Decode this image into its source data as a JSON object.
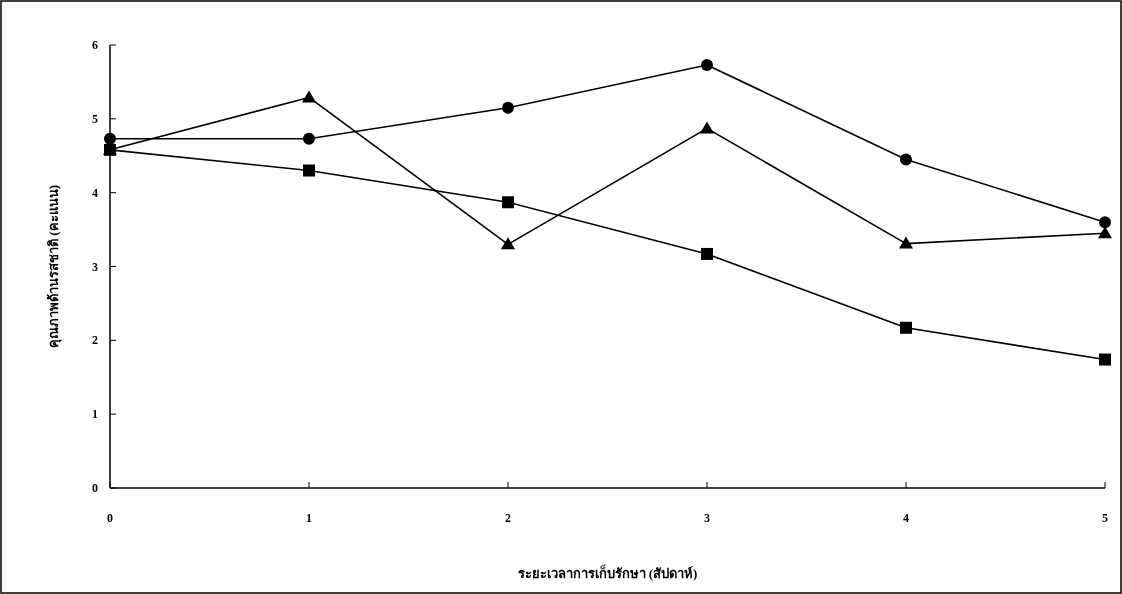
{
  "chart_data": {
    "type": "line",
    "xlabel": "ระยะเวลาการเก็บรักษา (สัปดาห์)",
    "ylabel": "คุณภาพด้านรสชาติ (คะแนน)",
    "x": [
      0,
      1,
      2,
      3,
      4,
      5
    ],
    "xlim": [
      0,
      5
    ],
    "xticks": [
      0,
      1,
      2,
      3,
      4,
      5
    ],
    "ylim": [
      0,
      6
    ],
    "yticks": [
      0,
      1,
      2,
      3,
      4,
      5,
      6
    ],
    "grid": false,
    "series": [
      {
        "color": "#000000",
        "marker": "circle",
        "values": [
          4.73,
          4.73,
          5.15,
          5.73,
          4.45,
          3.6
        ]
      },
      {
        "color": "#000000",
        "marker": "square",
        "values": [
          4.58,
          4.3,
          3.87,
          3.17,
          2.17,
          1.74
        ]
      },
      {
        "color": "#000000",
        "marker": "triangle",
        "values": [
          4.58,
          5.29,
          3.3,
          4.87,
          3.31,
          3.45
        ]
      }
    ]
  }
}
